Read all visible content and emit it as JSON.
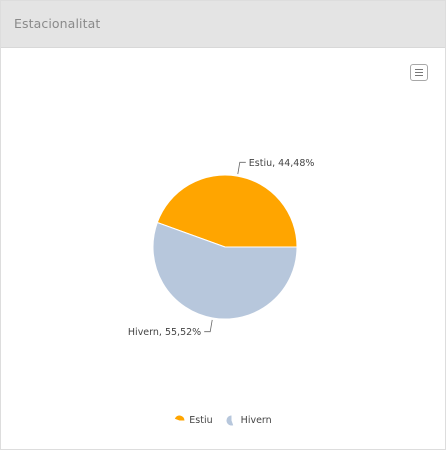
{
  "panel": {
    "title": "Estacionalitat",
    "menu_icon": "hamburger-menu-icon"
  },
  "chart_data": {
    "type": "pie",
    "title": "",
    "series": [
      {
        "values": [
          {
            "name": "Estiu",
            "value": 44.48,
            "label": "Estiu, 44,48%",
            "color": "#ffa500"
          },
          {
            "name": "Hivern",
            "value": 55.52,
            "label": "Hivern, 55,52%",
            "color": "#b7c7dc"
          }
        ]
      }
    ],
    "legend": {
      "placement": "bottom-center",
      "items": [
        "Estiu",
        "Hivern"
      ]
    }
  }
}
